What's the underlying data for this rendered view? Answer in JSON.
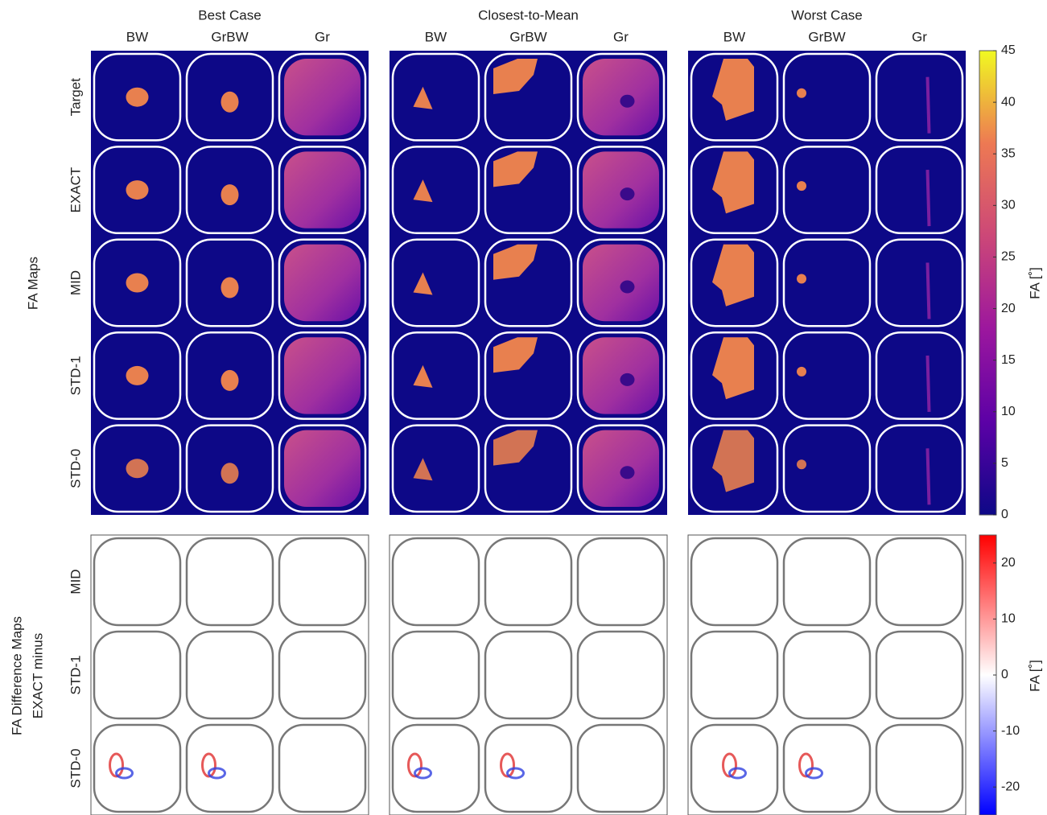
{
  "group_titles": [
    "Best Case",
    "Closest-to-Mean",
    "Worst Case"
  ],
  "column_labels": [
    "BW",
    "GrBW",
    "Gr"
  ],
  "fa_maps": {
    "label": "FA Maps",
    "row_labels": [
      "Target",
      "EXACT",
      "MID",
      "STD-1",
      "STD-0"
    ]
  },
  "diff_maps": {
    "label_lines": [
      "FA Difference Maps",
      "EXACT minus"
    ],
    "row_labels": [
      "MID",
      "STD-1",
      "STD-0"
    ]
  },
  "colorbar_fa": {
    "label": "FA [˚]",
    "lim": [
      0,
      45
    ],
    "ticks": [
      0,
      5,
      10,
      15,
      20,
      25,
      30,
      35,
      40,
      45
    ]
  },
  "colorbar_diff": {
    "label": "FA [˚]",
    "lim": [
      -25,
      25
    ],
    "ticks": [
      -20,
      -10,
      0,
      10,
      20
    ]
  }
}
